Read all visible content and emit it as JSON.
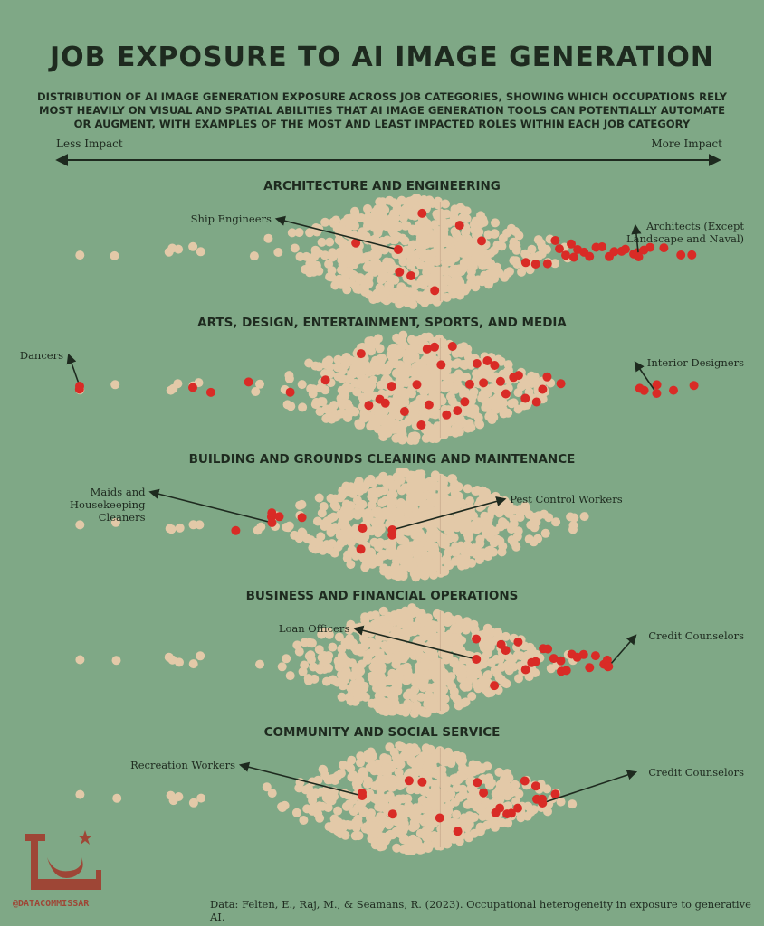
{
  "title": "JOB EXPOSURE TO AI IMAGE GENERATION",
  "subtitle": "DISTRIBUTION OF AI IMAGE GENERATION EXPOSURE ACROSS JOB CATEGORIES, SHOWING WHICH OCCUPATIONS RELY MOST HEAVILY ON VISUAL AND SPATIAL ABILITIES THAT AI IMAGE GENERATION TOOLS CAN POTENTIALLY AUTOMATE OR AUGMENT, WITH EXAMPLES OF THE MOST AND LEAST IMPACTED ROLES WITHIN EACH JOB CATEGORY",
  "axis": {
    "left_label": "Less Impact",
    "right_label": "More Impact"
  },
  "source": "Data: Felten, E., Raj, M., & Seamans, R. (2023). Occupational heterogeneity in exposure to generative AI.",
  "brand": "@DATACOMMISSAR",
  "colors": {
    "background": "#7fa886",
    "all_occupations": "#e3c9a8",
    "category_occupations": "#d92b26",
    "text": "#1e2a1f",
    "brand": "#9e4636"
  },
  "chart_data": {
    "type": "scatter",
    "style": "beeswarm",
    "x_range": [
      "Less Impact",
      "More Impact"
    ],
    "x_domain": [
      0,
      100
    ],
    "grid": false,
    "categories": [
      {
        "name": "ARCHITECTURE AND ENGINEERING",
        "highlight": [
          46,
          53,
          55,
          57,
          59,
          63,
          67,
          74,
          76,
          78,
          79,
          80,
          81,
          82,
          82,
          83,
          84,
          85,
          86,
          87,
          88,
          89,
          90,
          91,
          92,
          93,
          94,
          95,
          97,
          100,
          102
        ],
        "annotations": [
          {
            "label": "Ship Engineers",
            "x": 53,
            "side": "left"
          },
          {
            "label": "Architects (Except Landscape and Naval)",
            "x": 93,
            "side": "right"
          }
        ]
      },
      {
        "name": "ARTS, DESIGN, ENTERTAINMENT, SPORTS, AND MEDIA",
        "highlight": [
          0,
          19,
          22,
          28,
          35,
          41,
          47,
          48,
          50,
          51,
          52,
          54,
          56,
          57,
          58,
          58,
          59,
          60,
          61,
          62,
          63,
          64,
          65,
          66,
          67,
          68,
          69,
          70,
          71,
          72,
          73,
          74,
          76,
          77,
          78,
          80,
          93,
          94,
          96,
          99,
          102
        ],
        "annotations": [
          {
            "label": "Dancers",
            "x": 0,
            "side": "left"
          },
          {
            "label": "Interior Designers",
            "x": 96,
            "side": "right"
          }
        ]
      },
      {
        "name": "BUILDING AND GROUNDS CLEANING AND MAINTENANCE",
        "highlight": [
          26,
          32,
          32,
          33,
          37,
          47,
          47,
          52
        ],
        "annotations": [
          {
            "label": "Maids and Housekeeping Cleaners",
            "x": 32,
            "side": "left"
          },
          {
            "label": "Pest Control Workers",
            "x": 52,
            "side": "right"
          }
        ]
      },
      {
        "name": "BUSINESS AND FINANCIAL OPERATIONS",
        "highlight": [
          66,
          69,
          70,
          71,
          73,
          74,
          75,
          76,
          77,
          78,
          79,
          80,
          80,
          81,
          82,
          83,
          84,
          85,
          86,
          87,
          88,
          88
        ],
        "annotations": [
          {
            "label": "Loan Officers",
            "x": 66,
            "side": "left"
          },
          {
            "label": "Credit Counselors",
            "x": 88,
            "side": "right"
          }
        ]
      },
      {
        "name": "COMMUNITY AND SOCIAL SERVICE",
        "highlight": [
          47,
          52,
          55,
          57,
          60,
          63,
          66,
          67,
          69,
          70,
          71,
          72,
          73,
          74,
          76,
          76,
          77,
          79
        ],
        "annotations": [
          {
            "label": "Recreation Workers",
            "x": 47,
            "side": "left"
          },
          {
            "label": "Credit Counselors",
            "x": 77,
            "side": "right"
          }
        ]
      }
    ]
  }
}
